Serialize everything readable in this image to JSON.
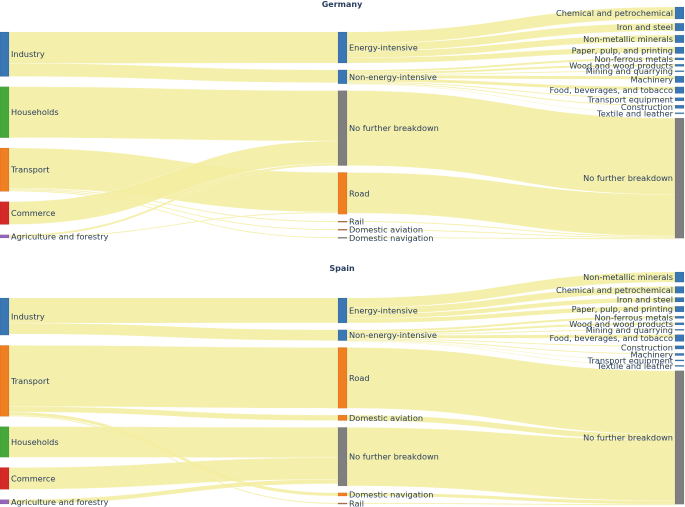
{
  "chart_data": {
    "type": "sankey",
    "unit": "relative final energy consumption share",
    "colors": {
      "link": "#f2ed9f",
      "industry": "#3b77b4",
      "households": "#46a83a",
      "transport": "#f07f22",
      "commerce": "#d62a28",
      "agriculture": "#9467bd",
      "no_breakdown": "#7f7f7f",
      "rail": "#b0714a",
      "aviation": "#b0714a",
      "navigation": "#7f7f7f",
      "text": "#2a3f5f"
    },
    "diagrams": [
      {
        "title": "Germany",
        "columns": [
          [
            {
              "id": "industry",
              "label": "Industry",
              "value": 41,
              "color": "#3b77b4"
            },
            {
              "id": "households",
              "label": "Households",
              "value": 47,
              "color": "#46a83a"
            },
            {
              "id": "transport",
              "label": "Transport",
              "value": 40,
              "color": "#f07f22"
            },
            {
              "id": "commerce",
              "label": "Commerce",
              "value": 21,
              "color": "#d62a28"
            },
            {
              "id": "agriculture",
              "label": "Agriculture and forestry",
              "value": 3,
              "color": "#9467bd"
            }
          ],
          [
            {
              "id": "energy_intensive",
              "label": "Energy-intensive",
              "value": 29,
              "color": "#3b77b4"
            },
            {
              "id": "non_energy_intensive",
              "label": "Non-energy-intensive",
              "value": 13,
              "color": "#3b77b4"
            },
            {
              "id": "no_breakdown_mid",
              "label": "No further breakdown",
              "value": 70,
              "color": "#7f7f7f"
            },
            {
              "id": "road",
              "label": "Road",
              "value": 39,
              "color": "#f07f22"
            },
            {
              "id": "rail",
              "label": "Rail",
              "value": 1,
              "color": "#b0714a"
            },
            {
              "id": "domestic_aviation",
              "label": "Domestic aviation",
              "value": 1,
              "color": "#b0714a"
            },
            {
              "id": "domestic_navigation",
              "label": "Domestic navigation",
              "value": 1,
              "color": "#7f7f7f"
            }
          ],
          [
            {
              "id": "chemical",
              "label": "Chemical and petrochemical",
              "value": 11,
              "color": "#3b77b4"
            },
            {
              "id": "iron_steel",
              "label": "Iron and steel",
              "value": 7,
              "color": "#3b77b4"
            },
            {
              "id": "non_metallic",
              "label": "Non-metallic minerals",
              "value": 7,
              "color": "#3b77b4"
            },
            {
              "id": "paper",
              "label": "Paper, pulp, and printing",
              "value": 6,
              "color": "#3b77b4"
            },
            {
              "id": "non_ferrous",
              "label": "Non-ferrous metals",
              "value": 2,
              "color": "#3b77b4"
            },
            {
              "id": "wood",
              "label": "Wood and wood products",
              "value": 2,
              "color": "#3b77b4"
            },
            {
              "id": "mining",
              "label": "Mining and quarrying",
              "value": 1,
              "color": "#3b77b4"
            },
            {
              "id": "machinery",
              "label": "Machinery",
              "value": 6,
              "color": "#3b77b4"
            },
            {
              "id": "food",
              "label": "Food, beverages, and tobacco",
              "value": 6,
              "color": "#3b77b4"
            },
            {
              "id": "transport_equipment",
              "label": "Transport equipment",
              "value": 3,
              "color": "#3b77b4"
            },
            {
              "id": "construction",
              "label": "Construction",
              "value": 3,
              "color": "#3b77b4"
            },
            {
              "id": "textile",
              "label": "Textile and leather",
              "value": 1,
              "color": "#3b77b4"
            },
            {
              "id": "no_breakdown_right",
              "label": "No further breakdown",
              "value": 110,
              "color": "#7f7f7f"
            }
          ]
        ],
        "links": [
          {
            "source": "industry",
            "target": "energy_intensive",
            "value": 29
          },
          {
            "source": "industry",
            "target": "non_energy_intensive",
            "value": 12
          },
          {
            "source": "households",
            "target": "no_breakdown_mid",
            "value": 47
          },
          {
            "source": "transport",
            "target": "road",
            "value": 37
          },
          {
            "source": "transport",
            "target": "rail",
            "value": 1
          },
          {
            "source": "transport",
            "target": "domestic_aviation",
            "value": 1
          },
          {
            "source": "transport",
            "target": "domestic_navigation",
            "value": 1
          },
          {
            "source": "commerce",
            "target": "no_breakdown_mid",
            "value": 21
          },
          {
            "source": "agriculture",
            "target": "no_breakdown_mid",
            "value": 2
          },
          {
            "source": "agriculture",
            "target": "road",
            "value": 1
          },
          {
            "source": "energy_intensive",
            "target": "chemical",
            "value": 11
          },
          {
            "source": "energy_intensive",
            "target": "iron_steel",
            "value": 7
          },
          {
            "source": "energy_intensive",
            "target": "non_metallic",
            "value": 6
          },
          {
            "source": "energy_intensive",
            "target": "paper",
            "value": 5
          },
          {
            "source": "non_energy_intensive",
            "target": "non_ferrous",
            "value": 2
          },
          {
            "source": "non_energy_intensive",
            "target": "wood",
            "value": 2
          },
          {
            "source": "non_energy_intensive",
            "target": "mining",
            "value": 1
          },
          {
            "source": "non_energy_intensive",
            "target": "machinery",
            "value": 3
          },
          {
            "source": "non_energy_intensive",
            "target": "food",
            "value": 3
          },
          {
            "source": "non_energy_intensive",
            "target": "transport_equipment",
            "value": 1
          },
          {
            "source": "non_energy_intensive",
            "target": "construction",
            "value": 1
          },
          {
            "source": "non_energy_intensive",
            "target": "textile",
            "value": 0.5
          },
          {
            "source": "no_breakdown_mid",
            "target": "no_breakdown_right",
            "value": 70
          },
          {
            "source": "road",
            "target": "no_breakdown_right",
            "value": 38
          },
          {
            "source": "rail",
            "target": "no_breakdown_right",
            "value": 1
          },
          {
            "source": "domestic_aviation",
            "target": "no_breakdown_right",
            "value": 1
          },
          {
            "source": "domestic_navigation",
            "target": "no_breakdown_right",
            "value": 1
          }
        ]
      },
      {
        "title": "Spain",
        "columns": [
          [
            {
              "id": "industry",
              "label": "Industry",
              "value": 34,
              "color": "#3b77b4"
            },
            {
              "id": "transport",
              "label": "Transport",
              "value": 65,
              "color": "#f07f22"
            },
            {
              "id": "households",
              "label": "Households",
              "value": 28,
              "color": "#46a83a"
            },
            {
              "id": "commerce",
              "label": "Commerce",
              "value": 20,
              "color": "#d62a28"
            },
            {
              "id": "agriculture",
              "label": "Agriculture and forestry",
              "value": 4,
              "color": "#9467bd"
            }
          ],
          [
            {
              "id": "energy_intensive",
              "label": "Energy-intensive",
              "value": 23,
              "color": "#3b77b4"
            },
            {
              "id": "non_energy_intensive",
              "label": "Non-energy-intensive",
              "value": 10,
              "color": "#3b77b4"
            },
            {
              "id": "road",
              "label": "Road",
              "value": 56,
              "color": "#f07f22"
            },
            {
              "id": "domestic_aviation",
              "label": "Domestic aviation",
              "value": 5,
              "color": "#f07f22"
            },
            {
              "id": "no_breakdown_mid",
              "label": "No further breakdown",
              "value": 54,
              "color": "#7f7f7f"
            },
            {
              "id": "domestic_navigation",
              "label": "Domestic navigation",
              "value": 3,
              "color": "#f07f22"
            },
            {
              "id": "rail",
              "label": "Rail",
              "value": 1,
              "color": "#b0714a"
            }
          ],
          [
            {
              "id": "non_metallic",
              "label": "Non-metallic minerals",
              "value": 9,
              "color": "#3b77b4"
            },
            {
              "id": "chemical",
              "label": "Chemical and petrochemical",
              "value": 6,
              "color": "#3b77b4"
            },
            {
              "id": "iron_steel",
              "label": "Iron and steel",
              "value": 4,
              "color": "#3b77b4"
            },
            {
              "id": "paper",
              "label": "Paper, pulp, and printing",
              "value": 5,
              "color": "#3b77b4"
            },
            {
              "id": "non_ferrous",
              "label": "Non-ferrous metals",
              "value": 2,
              "color": "#3b77b4"
            },
            {
              "id": "wood",
              "label": "Wood and wood products",
              "value": 2,
              "color": "#3b77b4"
            },
            {
              "id": "mining",
              "label": "Mining and quarrying",
              "value": 1,
              "color": "#3b77b4"
            },
            {
              "id": "food",
              "label": "Food, beverages, and tobacco",
              "value": 6,
              "color": "#3b77b4"
            },
            {
              "id": "construction",
              "label": "Construction",
              "value": 3,
              "color": "#3b77b4"
            },
            {
              "id": "machinery",
              "label": "Machinery",
              "value": 2,
              "color": "#3b77b4"
            },
            {
              "id": "transport_equipment",
              "label": "Transport equipment",
              "value": 1,
              "color": "#3b77b4"
            },
            {
              "id": "textile",
              "label": "Textile and leather",
              "value": 1,
              "color": "#3b77b4"
            },
            {
              "id": "no_breakdown_right",
              "label": "No further breakdown",
              "value": 118,
              "color": "#7f7f7f"
            }
          ]
        ],
        "links": [
          {
            "source": "industry",
            "target": "energy_intensive",
            "value": 23
          },
          {
            "source": "industry",
            "target": "non_energy_intensive",
            "value": 10
          },
          {
            "source": "transport",
            "target": "road",
            "value": 56
          },
          {
            "source": "transport",
            "target": "domestic_aviation",
            "value": 5
          },
          {
            "source": "transport",
            "target": "domestic_navigation",
            "value": 3
          },
          {
            "source": "transport",
            "target": "rail",
            "value": 1
          },
          {
            "source": "households",
            "target": "no_breakdown_mid",
            "value": 28
          },
          {
            "source": "commerce",
            "target": "no_breakdown_mid",
            "value": 20
          },
          {
            "source": "agriculture",
            "target": "no_breakdown_mid",
            "value": 4
          },
          {
            "source": "energy_intensive",
            "target": "non_metallic",
            "value": 9
          },
          {
            "source": "energy_intensive",
            "target": "chemical",
            "value": 6
          },
          {
            "source": "energy_intensive",
            "target": "iron_steel",
            "value": 4
          },
          {
            "source": "energy_intensive",
            "target": "paper",
            "value": 4
          },
          {
            "source": "non_energy_intensive",
            "target": "non_ferrous",
            "value": 2
          },
          {
            "source": "non_energy_intensive",
            "target": "wood",
            "value": 2
          },
          {
            "source": "non_energy_intensive",
            "target": "mining",
            "value": 1
          },
          {
            "source": "non_energy_intensive",
            "target": "food",
            "value": 3
          },
          {
            "source": "non_energy_intensive",
            "target": "construction",
            "value": 1
          },
          {
            "source": "non_energy_intensive",
            "target": "machinery",
            "value": 1
          },
          {
            "source": "non_energy_intensive",
            "target": "transport_equipment",
            "value": 0.5
          },
          {
            "source": "non_energy_intensive",
            "target": "textile",
            "value": 0.5
          },
          {
            "source": "road",
            "target": "no_breakdown_right",
            "value": 56
          },
          {
            "source": "domestic_aviation",
            "target": "no_breakdown_right",
            "value": 5
          },
          {
            "source": "no_breakdown_mid",
            "target": "no_breakdown_right",
            "value": 54
          },
          {
            "source": "domestic_navigation",
            "target": "no_breakdown_right",
            "value": 3
          },
          {
            "source": "rail",
            "target": "no_breakdown_right",
            "value": 1
          }
        ]
      }
    ]
  }
}
